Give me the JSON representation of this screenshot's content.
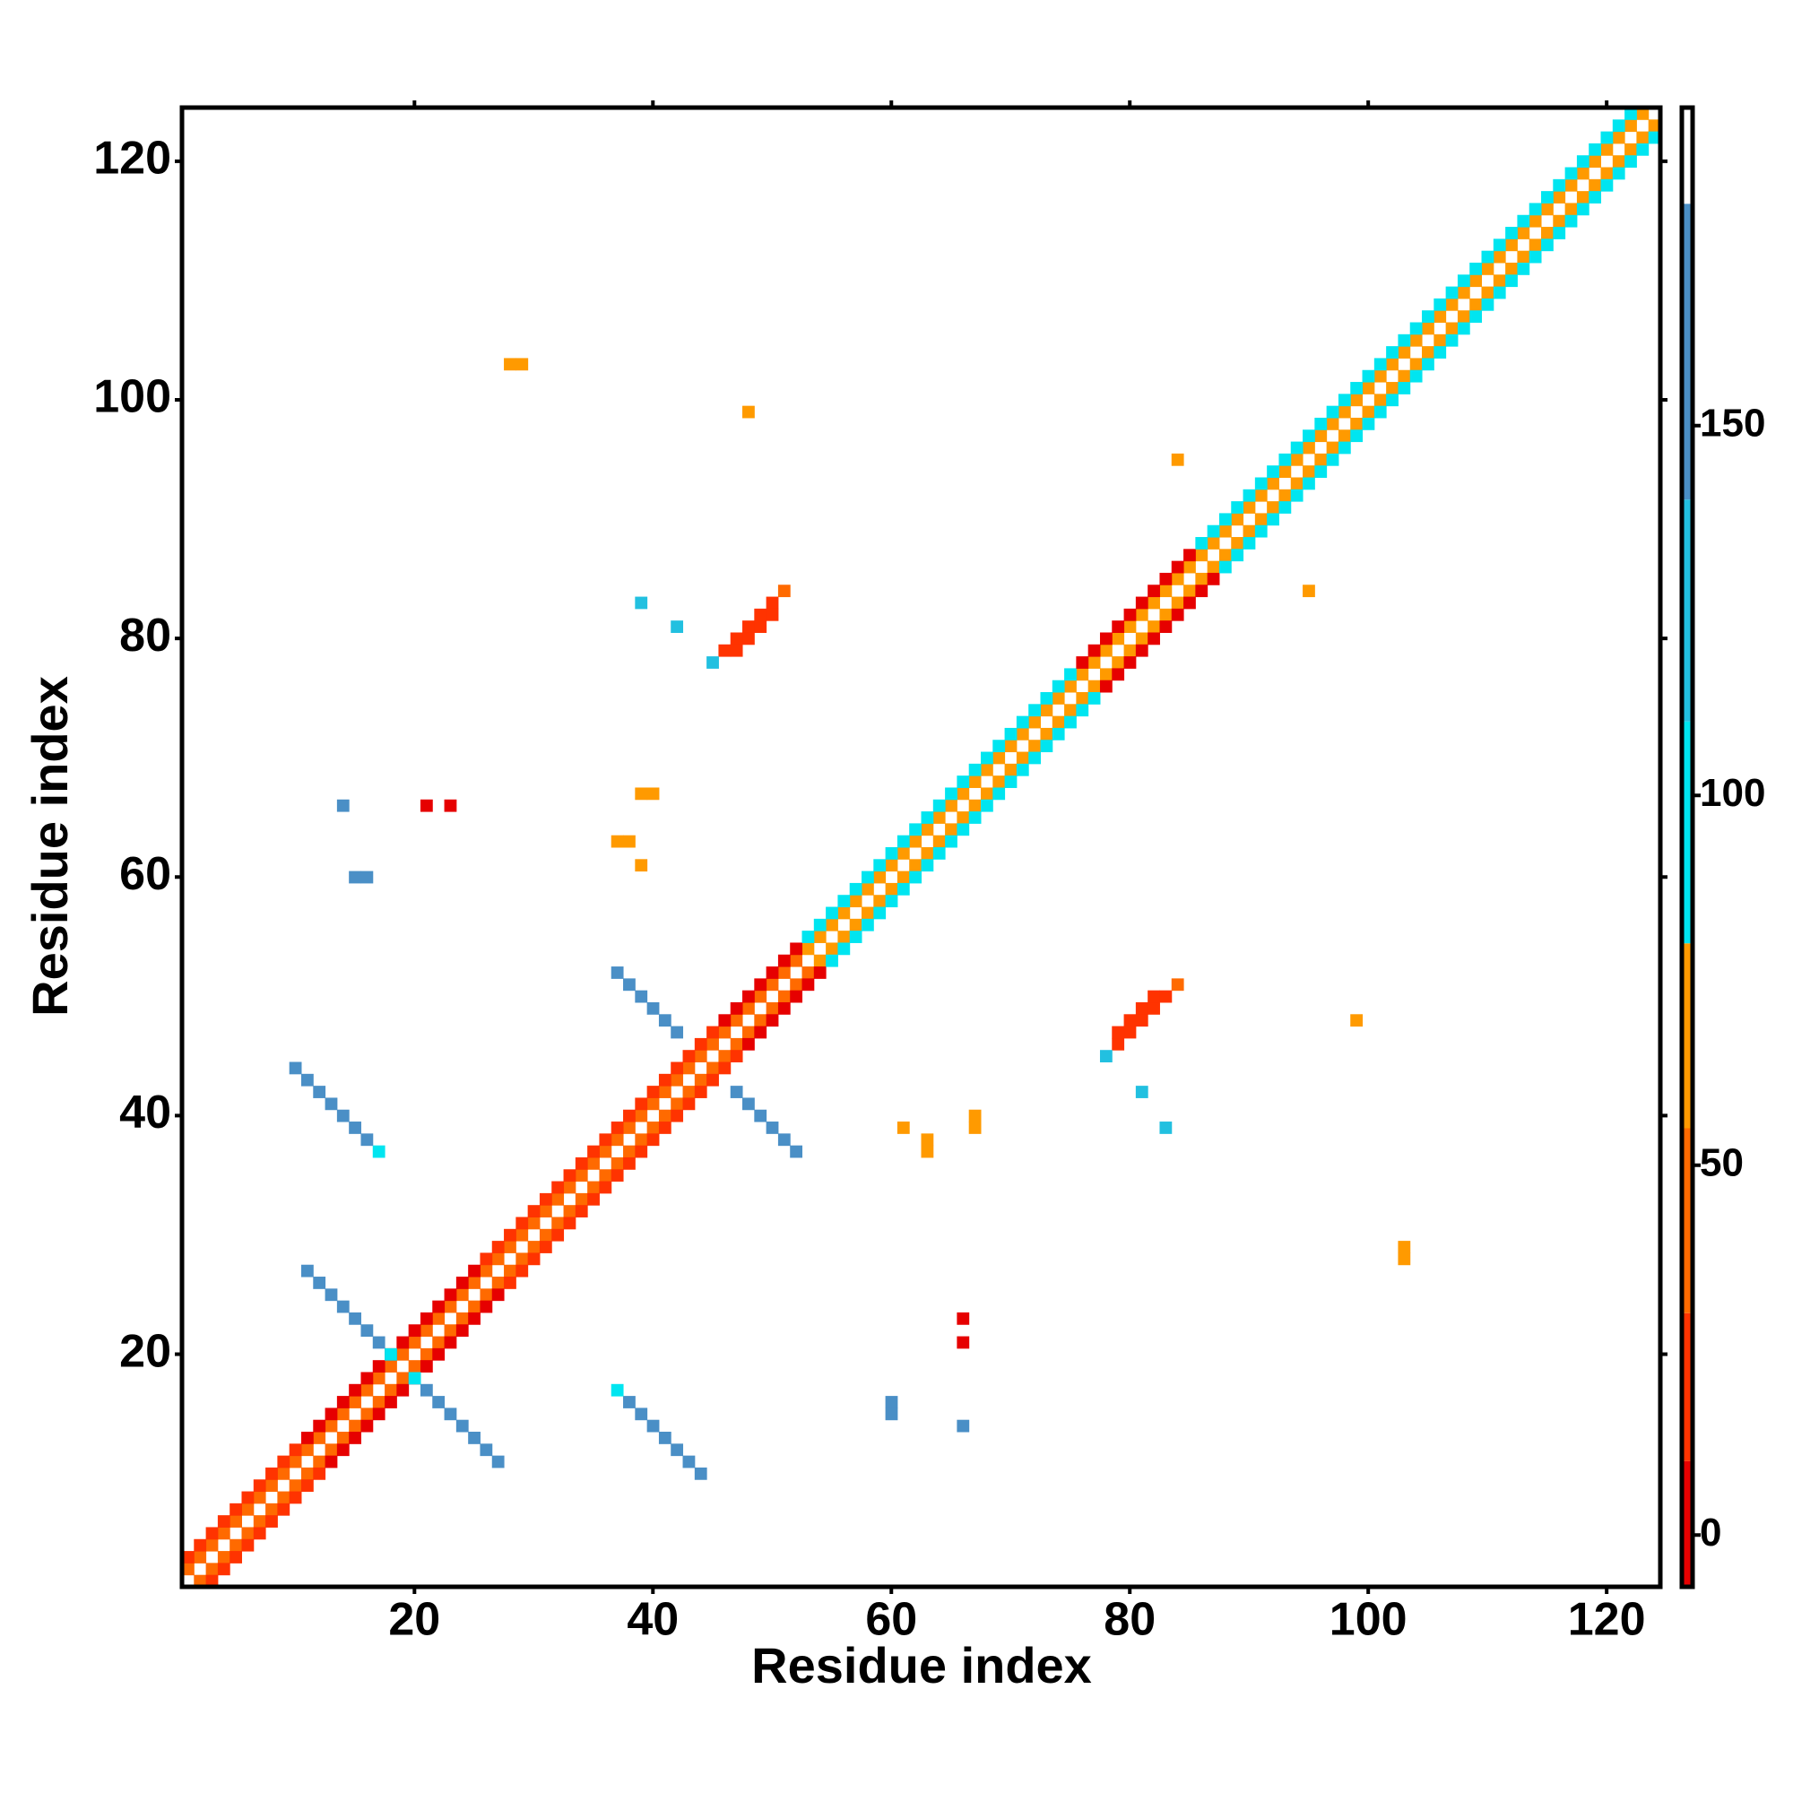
{
  "chart_data": {
    "type": "heatmap",
    "xlabel": "Residue index",
    "ylabel": "Residue index",
    "xlim": [
      0.5,
      124.5
    ],
    "ylim": [
      0.5,
      124.5
    ],
    "xticks": [
      20,
      40,
      60,
      80,
      100,
      120
    ],
    "yticks": [
      20,
      40,
      60,
      80,
      100,
      120
    ],
    "clim": [
      -7,
      193
    ],
    "cticks": [
      0,
      50,
      100,
      150
    ],
    "colorscale": [
      {
        "from": -7,
        "to": 10,
        "color": "#e60000"
      },
      {
        "from": 10,
        "to": 30,
        "color": "#ff3300"
      },
      {
        "from": 30,
        "to": 55,
        "color": "#ff6a00"
      },
      {
        "from": 55,
        "to": 80,
        "color": "#ff9a00"
      },
      {
        "from": 80,
        "to": 110,
        "color": "#00e5f0"
      },
      {
        "from": 110,
        "to": 140,
        "color": "#22c0e0"
      },
      {
        "from": 140,
        "to": 180,
        "color": "#4a8fc6"
      },
      {
        "from": 180,
        "to": 193,
        "color": "#ffffff"
      }
    ],
    "x": [
      1,
      2,
      3,
      4,
      5,
      6,
      7,
      8,
      9,
      10,
      11,
      12,
      13,
      14,
      15,
      16,
      17,
      18,
      19,
      20,
      21,
      22,
      23,
      24,
      25,
      26,
      27,
      28,
      29,
      30,
      31,
      32,
      33,
      34,
      35,
      36,
      37,
      38,
      39,
      40,
      41,
      42,
      43,
      44,
      45,
      46,
      47,
      48,
      49,
      50,
      51,
      52,
      53,
      54,
      55,
      56,
      57,
      58,
      59,
      60,
      61,
      62,
      63,
      64,
      65,
      66,
      67,
      68,
      69,
      70,
      71,
      72,
      73,
      74,
      75,
      76,
      77,
      78,
      79,
      80,
      81,
      82,
      83,
      84,
      85,
      86,
      87,
      88,
      89,
      90,
      91,
      92,
      93,
      94,
      95,
      96,
      97,
      98,
      99,
      100,
      101,
      102,
      103,
      104,
      105,
      106,
      107,
      108,
      109,
      110,
      111,
      112,
      113,
      114,
      115,
      116,
      117,
      118,
      119,
      120,
      121,
      122,
      123,
      2,
      3,
      4,
      5,
      6,
      7,
      8,
      9,
      10,
      11,
      12,
      13,
      14,
      15,
      16,
      17,
      18,
      19,
      20,
      21,
      22,
      23,
      24,
      25,
      26,
      27,
      28,
      29,
      30,
      31,
      32,
      33,
      34,
      35,
      36,
      37,
      38,
      39,
      40,
      41,
      42,
      43,
      44,
      45,
      46,
      47,
      48,
      49,
      50,
      51,
      52,
      53,
      54,
      55,
      56,
      57,
      58,
      59,
      60,
      61,
      62,
      63,
      64,
      65,
      66,
      67,
      68,
      69,
      70,
      71,
      72,
      73,
      74,
      75,
      76,
      77,
      78,
      79,
      80,
      81,
      82,
      83,
      84,
      85,
      86,
      87,
      88,
      89,
      90,
      91,
      92,
      93,
      94,
      95,
      96,
      97,
      98,
      99,
      100,
      101,
      102,
      103,
      104,
      105,
      106,
      107,
      108,
      109,
      110,
      111,
      112,
      113,
      114,
      115,
      116,
      117,
      118,
      119,
      120,
      121,
      122,
      123,
      124,
      1,
      2,
      3,
      4,
      5,
      6,
      7,
      8,
      9,
      10,
      11,
      12,
      13,
      14,
      15,
      16,
      17,
      18,
      19,
      20,
      21,
      22,
      23,
      24,
      25,
      26,
      27,
      28,
      29,
      30,
      31,
      32,
      33,
      34,
      35,
      36,
      37,
      38,
      39,
      40,
      41,
      42,
      43,
      44,
      45,
      46,
      47,
      48,
      49,
      50,
      51,
      52,
      53,
      54,
      55,
      56,
      57,
      58,
      59,
      60,
      61,
      62,
      63,
      64,
      65,
      66,
      67,
      68,
      69,
      70,
      71,
      72,
      73,
      74,
      75,
      76,
      77,
      78,
      79,
      80,
      81,
      82,
      83,
      84,
      85,
      86,
      87,
      88,
      89,
      90,
      91,
      92,
      93,
      94,
      95,
      96,
      97,
      98,
      99,
      100,
      101,
      102,
      103,
      104,
      105,
      106,
      107,
      108,
      109,
      110,
      111,
      112,
      113,
      114,
      115,
      116,
      117,
      118,
      119,
      120,
      121,
      122,
      3,
      4,
      5,
      6,
      7,
      8,
      9,
      10,
      11,
      12,
      13,
      14,
      15,
      16,
      17,
      18,
      19,
      20,
      21,
      22,
      23,
      24,
      25,
      26,
      27,
      28,
      29,
      30,
      31,
      32,
      33,
      34,
      35,
      36,
      37,
      38,
      39,
      40,
      41,
      42,
      43,
      44,
      45,
      46,
      47,
      48,
      49,
      50,
      51,
      52,
      53,
      54,
      55,
      56,
      57,
      58,
      59,
      60,
      61,
      62,
      63,
      64,
      65,
      66,
      67,
      68,
      69,
      70,
      71,
      72,
      73,
      74,
      75,
      76,
      77,
      78,
      79,
      80,
      81,
      82,
      83,
      84,
      85,
      86,
      87,
      88,
      89,
      90,
      91,
      92,
      93,
      94,
      95,
      96,
      97,
      98,
      99,
      100,
      101,
      102,
      103,
      104,
      105,
      106,
      107,
      108,
      109,
      110,
      111,
      112,
      113,
      114,
      115,
      116,
      117,
      118,
      119,
      120,
      121,
      122,
      123,
      124,
      11,
      12,
      13,
      14,
      15,
      16,
      17,
      37,
      38,
      39,
      40,
      41,
      42,
      10,
      11,
      12,
      13,
      14,
      15,
      16,
      46,
      47,
      48,
      49,
      50,
      51,
      47,
      48,
      49,
      50,
      28,
      29,
      48,
      84,
      39,
      42,
      45,
      14,
      15,
      16,
      21,
      23,
      39,
      40,
      37,
      38,
      39,
      17,
      18,
      27,
      26,
      25,
      24,
      23,
      22,
      21,
      52,
      51,
      50,
      49,
      48,
      47,
      44,
      43,
      42,
      41,
      40,
      39,
      38,
      79,
      80,
      81,
      82,
      83,
      84,
      79,
      80,
      81,
      82,
      103,
      103,
      99,
      95,
      83,
      81,
      78,
      66,
      60,
      60,
      66,
      66,
      67,
      67,
      63,
      63,
      61,
      37,
      20
    ],
    "y": [
      2,
      3,
      4,
      5,
      6,
      7,
      8,
      9,
      10,
      11,
      12,
      13,
      14,
      15,
      16,
      17,
      18,
      19,
      20,
      21,
      22,
      23,
      24,
      25,
      26,
      27,
      28,
      29,
      30,
      31,
      32,
      33,
      34,
      35,
      36,
      37,
      38,
      39,
      40,
      41,
      42,
      43,
      44,
      45,
      46,
      47,
      48,
      49,
      50,
      51,
      52,
      53,
      54,
      55,
      56,
      57,
      58,
      59,
      60,
      61,
      62,
      63,
      64,
      65,
      66,
      67,
      68,
      69,
      70,
      71,
      72,
      73,
      74,
      75,
      76,
      77,
      78,
      79,
      80,
      81,
      82,
      83,
      84,
      85,
      86,
      87,
      88,
      89,
      90,
      91,
      92,
      93,
      94,
      95,
      96,
      97,
      98,
      99,
      100,
      101,
      102,
      103,
      104,
      105,
      106,
      107,
      108,
      109,
      110,
      111,
      112,
      113,
      114,
      115,
      116,
      117,
      118,
      119,
      120,
      121,
      122,
      123,
      124,
      1,
      2,
      3,
      4,
      5,
      6,
      7,
      8,
      9,
      10,
      11,
      12,
      13,
      14,
      15,
      16,
      17,
      18,
      19,
      20,
      21,
      22,
      23,
      24,
      25,
      26,
      27,
      28,
      29,
      30,
      31,
      32,
      33,
      34,
      35,
      36,
      37,
      38,
      39,
      40,
      41,
      42,
      43,
      44,
      45,
      46,
      47,
      48,
      49,
      50,
      51,
      52,
      53,
      54,
      55,
      56,
      57,
      58,
      59,
      60,
      61,
      62,
      63,
      64,
      65,
      66,
      67,
      68,
      69,
      70,
      71,
      72,
      73,
      74,
      75,
      76,
      77,
      78,
      79,
      80,
      81,
      82,
      83,
      84,
      85,
      86,
      87,
      88,
      89,
      90,
      91,
      92,
      93,
      94,
      95,
      96,
      97,
      98,
      99,
      100,
      101,
      102,
      103,
      104,
      105,
      106,
      107,
      108,
      109,
      110,
      111,
      112,
      113,
      114,
      115,
      116,
      117,
      118,
      119,
      120,
      121,
      122,
      123,
      3,
      4,
      5,
      6,
      7,
      8,
      9,
      10,
      11,
      12,
      13,
      14,
      15,
      16,
      17,
      18,
      19,
      20,
      21,
      22,
      23,
      24,
      25,
      26,
      27,
      28,
      29,
      30,
      31,
      32,
      33,
      34,
      35,
      36,
      37,
      38,
      39,
      40,
      41,
      42,
      43,
      44,
      45,
      46,
      47,
      48,
      49,
      50,
      51,
      52,
      53,
      54,
      55,
      56,
      57,
      58,
      59,
      60,
      61,
      62,
      63,
      64,
      65,
      66,
      67,
      68,
      69,
      70,
      71,
      72,
      73,
      74,
      75,
      76,
      77,
      78,
      79,
      80,
      81,
      82,
      83,
      84,
      85,
      86,
      87,
      88,
      89,
      90,
      91,
      92,
      93,
      94,
      95,
      96,
      97,
      98,
      99,
      100,
      101,
      102,
      103,
      104,
      105,
      106,
      107,
      108,
      109,
      110,
      111,
      112,
      113,
      114,
      115,
      116,
      117,
      118,
      119,
      120,
      121,
      122,
      123,
      124,
      1,
      2,
      3,
      4,
      5,
      6,
      7,
      8,
      9,
      10,
      11,
      12,
      13,
      14,
      15,
      16,
      17,
      18,
      19,
      20,
      21,
      22,
      23,
      24,
      25,
      26,
      27,
      28,
      29,
      30,
      31,
      32,
      33,
      34,
      35,
      36,
      37,
      38,
      39,
      40,
      41,
      42,
      43,
      44,
      45,
      46,
      47,
      48,
      49,
      50,
      51,
      52,
      53,
      54,
      55,
      56,
      57,
      58,
      59,
      60,
      61,
      62,
      63,
      64,
      65,
      66,
      67,
      68,
      69,
      70,
      71,
      72,
      73,
      74,
      75,
      76,
      77,
      78,
      79,
      80,
      81,
      82,
      83,
      84,
      85,
      86,
      87,
      88,
      89,
      90,
      91,
      92,
      93,
      94,
      95,
      96,
      97,
      98,
      99,
      100,
      101,
      102,
      103,
      104,
      105,
      106,
      107,
      108,
      109,
      110,
      111,
      112,
      113,
      114,
      115,
      116,
      117,
      118,
      119,
      120,
      121,
      122,
      27,
      26,
      25,
      24,
      23,
      22,
      21,
      52,
      51,
      50,
      49,
      48,
      47,
      44,
      43,
      42,
      41,
      40,
      39,
      38,
      79,
      80,
      81,
      82,
      83,
      84,
      79,
      80,
      81,
      82,
      103,
      103,
      99,
      95,
      83,
      81,
      78,
      66,
      60,
      60,
      66,
      66,
      67,
      67,
      63,
      63,
      61,
      37,
      20,
      11,
      12,
      13,
      14,
      15,
      16,
      17,
      37,
      38,
      39,
      40,
      41,
      42,
      10,
      11,
      12,
      13,
      14,
      15,
      16,
      46,
      47,
      48,
      49,
      50,
      51,
      47,
      48,
      49,
      50,
      28,
      29,
      48,
      84,
      39,
      42,
      45,
      14,
      15,
      16,
      21,
      23,
      39,
      40,
      37,
      38,
      39,
      17,
      18
    ],
    "values": [
      45,
      45,
      45,
      45,
      45,
      45,
      45,
      45,
      45,
      45,
      45,
      45,
      45,
      45,
      45,
      45,
      45,
      45,
      45,
      45,
      45,
      45,
      45,
      45,
      45,
      45,
      45,
      45,
      45,
      45,
      45,
      45,
      45,
      45,
      45,
      45,
      45,
      45,
      45,
      45,
      45,
      45,
      45,
      45,
      45,
      45,
      45,
      45,
      45,
      45,
      45,
      45,
      65,
      65,
      65,
      65,
      65,
      65,
      65,
      65,
      65,
      65,
      65,
      65,
      65,
      65,
      65,
      65,
      65,
      65,
      65,
      65,
      65,
      65,
      65,
      65,
      65,
      65,
      65,
      65,
      65,
      65,
      65,
      65,
      65,
      65,
      65,
      65,
      65,
      65,
      65,
      65,
      65,
      65,
      65,
      65,
      65,
      65,
      65,
      65,
      65,
      65,
      65,
      65,
      65,
      65,
      65,
      65,
      65,
      65,
      65,
      65,
      65,
      65,
      65,
      65,
      65,
      65,
      65,
      65,
      65,
      65,
      65,
      45,
      45,
      45,
      45,
      45,
      45,
      45,
      45,
      45,
      45,
      45,
      45,
      45,
      45,
      45,
      45,
      45,
      45,
      45,
      45,
      45,
      45,
      45,
      45,
      45,
      45,
      45,
      45,
      45,
      45,
      45,
      45,
      45,
      45,
      45,
      45,
      45,
      45,
      45,
      45,
      45,
      45,
      45,
      45,
      45,
      45,
      45,
      45,
      45,
      45,
      45,
      45,
      65,
      65,
      65,
      65,
      65,
      65,
      65,
      65,
      65,
      65,
      65,
      65,
      65,
      65,
      65,
      65,
      65,
      65,
      65,
      65,
      65,
      65,
      65,
      65,
      65,
      65,
      65,
      65,
      65,
      65,
      65,
      65,
      65,
      65,
      65,
      65,
      65,
      65,
      65,
      65,
      65,
      65,
      65,
      65,
      65,
      65,
      65,
      65,
      65,
      65,
      65,
      65,
      65,
      65,
      65,
      65,
      65,
      65,
      65,
      65,
      65,
      65,
      65,
      65,
      65,
      65,
      65,
      65,
      65,
      65,
      65,
      20,
      20,
      20,
      20,
      20,
      20,
      20,
      20,
      20,
      20,
      5,
      5,
      5,
      5,
      5,
      5,
      5,
      5,
      5,
      5,
      5,
      5,
      5,
      5,
      5,
      25,
      25,
      25,
      25,
      25,
      25,
      25,
      25,
      25,
      25,
      25,
      25,
      25,
      25,
      25,
      25,
      25,
      25,
      25,
      25,
      5,
      5,
      5,
      5,
      5,
      5,
      5,
      95,
      95,
      95,
      95,
      95,
      95,
      95,
      95,
      95,
      95,
      95,
      95,
      95,
      95,
      95,
      95,
      95,
      95,
      95,
      95,
      95,
      95,
      95,
      5,
      5,
      5,
      5,
      5,
      5,
      5,
      5,
      5,
      5,
      95,
      95,
      95,
      95,
      95,
      95,
      95,
      95,
      95,
      95,
      95,
      95,
      95,
      95,
      95,
      95,
      95,
      95,
      95,
      95,
      95,
      95,
      95,
      95,
      95,
      95,
      95,
      95,
      95,
      95,
      95,
      95,
      95,
      95,
      95,
      95,
      95,
      20,
      20,
      20,
      20,
      20,
      20,
      20,
      20,
      20,
      20,
      5,
      5,
      5,
      5,
      5,
      5,
      5,
      5,
      5,
      5,
      5,
      5,
      5,
      5,
      5,
      25,
      25,
      25,
      25,
      25,
      25,
      25,
      25,
      25,
      25,
      25,
      25,
      25,
      25,
      25,
      25,
      25,
      25,
      25,
      25,
      5,
      5,
      5,
      5,
      5,
      5,
      5,
      95,
      95,
      95,
      95,
      95,
      95,
      95,
      95,
      95,
      95,
      95,
      95,
      95,
      95,
      95,
      95,
      95,
      95,
      95,
      95,
      95,
      95,
      95,
      5,
      5,
      5,
      5,
      5,
      5,
      5,
      5,
      5,
      5,
      95,
      95,
      95,
      95,
      95,
      95,
      95,
      95,
      95,
      95,
      95,
      95,
      95,
      95,
      95,
      95,
      95,
      95,
      95,
      95,
      95,
      95,
      95,
      95,
      95,
      95,
      95,
      95,
      95,
      95,
      95,
      95,
      95,
      95,
      95,
      95,
      95,
      150,
      150,
      150,
      150,
      150,
      150,
      150,
      150,
      150,
      150,
      150,
      150,
      150,
      150,
      150,
      150,
      150,
      150,
      150,
      150,
      10,
      10,
      10,
      10,
      10,
      45,
      10,
      10,
      10,
      10,
      60,
      60,
      60,
      60,
      110,
      110,
      110,
      150,
      150,
      150,
      5,
      5,
      60,
      60,
      60,
      60,
      60,
      95,
      95,
      150,
      150,
      150,
      150,
      150,
      150,
      150,
      150,
      150,
      150,
      150,
      150,
      150,
      150,
      150,
      150,
      150,
      150,
      150,
      150,
      10,
      10,
      10,
      10,
      10,
      45,
      10,
      10,
      10,
      10,
      60,
      60,
      60,
      60,
      110,
      110,
      110,
      150,
      150,
      150,
      5,
      5,
      60,
      60,
      60,
      60,
      60,
      95,
      95
    ]
  }
}
